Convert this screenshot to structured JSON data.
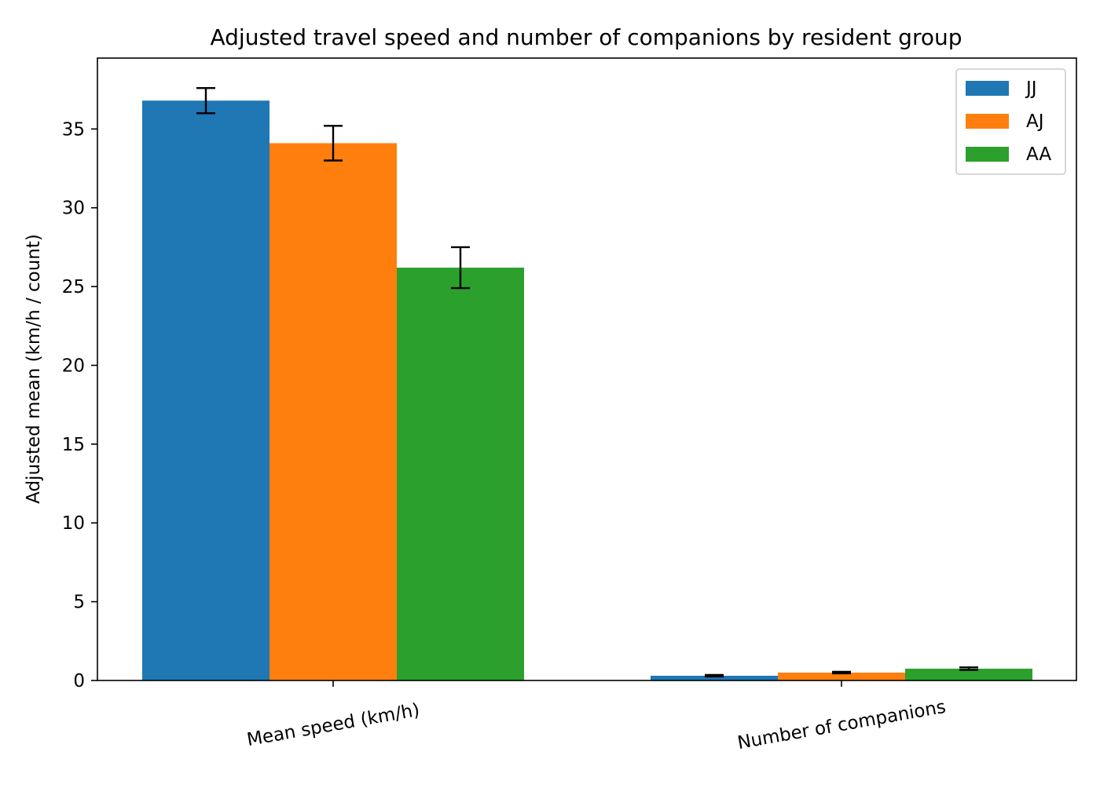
{
  "chart_data": {
    "type": "bar",
    "title": "Adjusted travel speed and number of companions by resident group",
    "xlabel": "",
    "ylabel": "Adjusted mean (km/h / count)",
    "categories": [
      "Mean speed (km/h)",
      "Number of companions"
    ],
    "series": [
      {
        "name": "JJ",
        "color": "#1f77b4",
        "values": [
          36.8,
          0.3
        ],
        "errors": [
          0.8,
          0.05
        ]
      },
      {
        "name": "AJ",
        "color": "#ff7f0e",
        "values": [
          34.1,
          0.5
        ],
        "errors": [
          1.1,
          0.05
        ]
      },
      {
        "name": "AA",
        "color": "#2ca02c",
        "values": [
          26.2,
          0.75
        ],
        "errors": [
          1.3,
          0.08
        ]
      }
    ],
    "ylim": [
      0,
      39.5
    ],
    "yticks": [
      0,
      5,
      10,
      15,
      20,
      25,
      30,
      35
    ],
    "grid": false,
    "legend_position": "top-right",
    "xtick_rotation_deg": -10
  }
}
